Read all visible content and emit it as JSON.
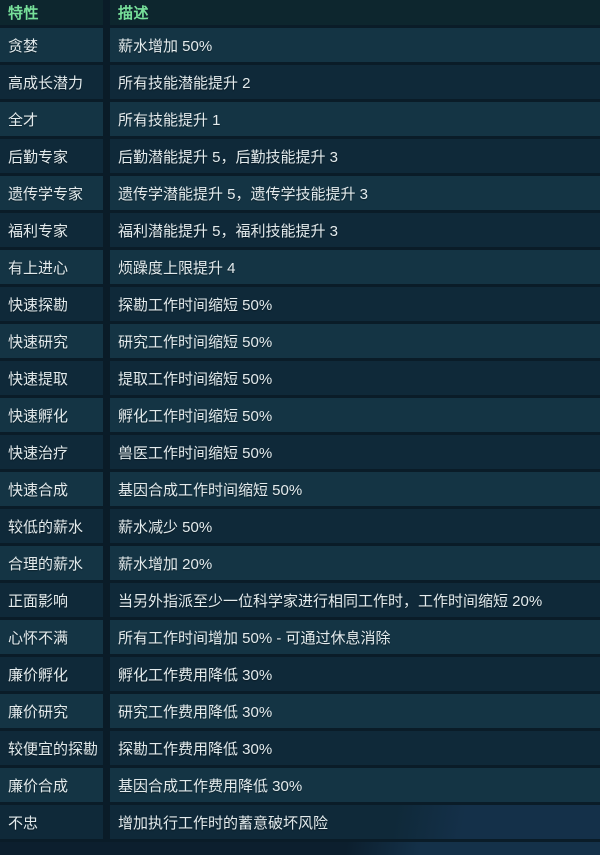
{
  "colors": {
    "header_text_green": "#77e09a",
    "header_background": "#0d262e",
    "row_light_background": "#143444",
    "row_dark_background": "#0f2939",
    "divider": "#0a1c28",
    "body_text": "#e3ebed",
    "page_background_navy": "#0c1f2e",
    "page_background_diagonal": "#143149"
  },
  "table": {
    "columns": [
      {
        "label": "特性"
      },
      {
        "label": "描述"
      }
    ],
    "rows": [
      {
        "trait": "贪婪",
        "desc": "薪水增加 50%"
      },
      {
        "trait": "高成长潜力",
        "desc": "所有技能潜能提升 2"
      },
      {
        "trait": "全才",
        "desc": "所有技能提升 1"
      },
      {
        "trait": "后勤专家",
        "desc": "后勤潜能提升 5，后勤技能提升 3"
      },
      {
        "trait": "遗传学专家",
        "desc": "遗传学潜能提升 5，遗传学技能提升 3"
      },
      {
        "trait": "福利专家",
        "desc": "福利潜能提升 5，福利技能提升 3"
      },
      {
        "trait": "有上进心",
        "desc": "烦躁度上限提升 4"
      },
      {
        "trait": "快速探勘",
        "desc": "探勘工作时间缩短 50%"
      },
      {
        "trait": "快速研究",
        "desc": "研究工作时间缩短 50%"
      },
      {
        "trait": "快速提取",
        "desc": "提取工作时间缩短 50%"
      },
      {
        "trait": "快速孵化",
        "desc": "孵化工作时间缩短 50%"
      },
      {
        "trait": "快速治疗",
        "desc": "兽医工作时间缩短 50%"
      },
      {
        "trait": "快速合成",
        "desc": "基因合成工作时间缩短 50%"
      },
      {
        "trait": "较低的薪水",
        "desc": "薪水减少 50%"
      },
      {
        "trait": "合理的薪水",
        "desc": "薪水增加 20%"
      },
      {
        "trait": "正面影响",
        "desc": "当另外指派至少一位科学家进行相同工作时，工作时间缩短 20%"
      },
      {
        "trait": "心怀不满",
        "desc": "所有工作时间增加 50% - 可通过休息消除"
      },
      {
        "trait": "廉价孵化",
        "desc": "孵化工作费用降低 30%"
      },
      {
        "trait": "廉价研究",
        "desc": "研究工作费用降低 30%"
      },
      {
        "trait": "较便宜的探勘",
        "desc": "探勘工作费用降低 30%"
      },
      {
        "trait": "廉价合成",
        "desc": "基因合成工作费用降低 30%"
      },
      {
        "trait": "不忠",
        "desc": "增加执行工作时的蓄意破坏风险"
      }
    ]
  }
}
